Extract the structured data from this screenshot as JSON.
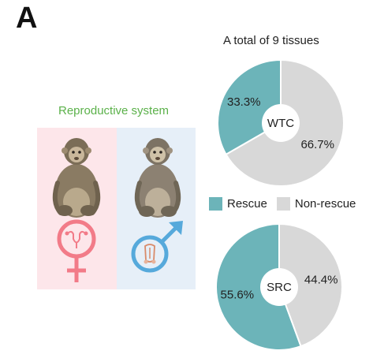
{
  "panel_label": "A",
  "reproductive_title": "Reproductive system",
  "pies_title": "A total of 9 tissues",
  "colors": {
    "rescue": "#6cb4b9",
    "non_rescue": "#d8d8d8",
    "female": "#f27b88",
    "male": "#56a9db",
    "title_green": "#5bb14a"
  },
  "icons": [
    "monkey-icon",
    "female-symbol-icon",
    "male-symbol-icon",
    "uterus-icon",
    "male-reproductive-icon"
  ],
  "legend": [
    {
      "label": "Rescue",
      "color": "#6cb4b9"
    },
    {
      "label": "Non-rescue",
      "color": "#d8d8d8"
    }
  ],
  "chart_data": [
    {
      "type": "pie",
      "center_label": "WTC",
      "categories": [
        "Rescue",
        "Non-rescue"
      ],
      "values": [
        33.3,
        66.7
      ],
      "labels": [
        "33.3%",
        "66.7%"
      ],
      "colors": [
        "#6cb4b9",
        "#d8d8d8"
      ]
    },
    {
      "type": "pie",
      "center_label": "SRC",
      "categories": [
        "Rescue",
        "Non-rescue"
      ],
      "values": [
        55.6,
        44.4
      ],
      "labels": [
        "55.6%",
        "44.4%"
      ],
      "colors": [
        "#6cb4b9",
        "#d8d8d8"
      ]
    }
  ]
}
